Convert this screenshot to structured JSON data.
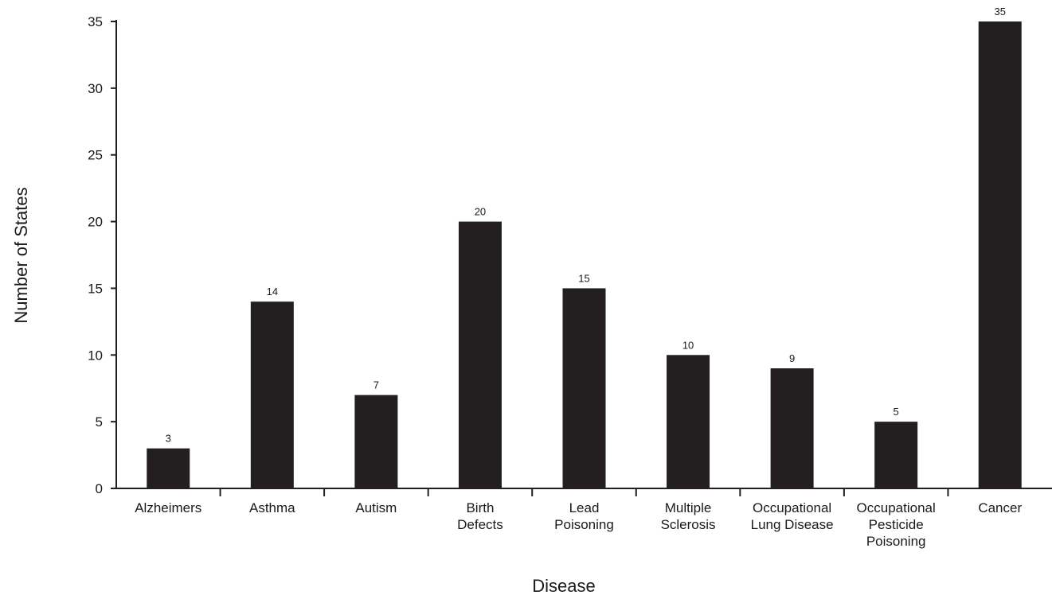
{
  "chart_data": {
    "type": "bar",
    "categories": [
      "Alzheimers",
      "Asthma",
      "Autism",
      "Birth Defects",
      "Lead Poisoning",
      "Multiple Sclerosis",
      "Occupational Lung Disease",
      "Occupational Pesticide Poisoning",
      "Cancer"
    ],
    "category_label_lines": [
      [
        "Alzheimers"
      ],
      [
        "Asthma"
      ],
      [
        "Autism"
      ],
      [
        "Birth",
        "Defects"
      ],
      [
        "Lead",
        "Poisoning"
      ],
      [
        "Multiple",
        "Sclerosis"
      ],
      [
        "Occupational",
        "Lung Disease"
      ],
      [
        "Occupational",
        "Pesticide",
        "Poisoning"
      ],
      [
        "Cancer"
      ]
    ],
    "values": [
      3,
      14,
      7,
      20,
      15,
      10,
      9,
      5,
      35
    ],
    "data_labels": [
      "3",
      "14",
      "7",
      "20",
      "15",
      "10",
      "9",
      "5",
      "35"
    ],
    "title": "",
    "xlabel": "Disease",
    "ylabel": "Number of States",
    "ylim": [
      0,
      35
    ],
    "yticks": [
      0,
      5,
      10,
      15,
      20,
      25,
      30,
      35
    ],
    "ytick_labels": [
      "0",
      "5",
      "10",
      "15",
      "20",
      "25",
      "30",
      "35"
    ],
    "grid": false,
    "legend": "none",
    "colors": {
      "bar": "#231f20",
      "axis": "#231f20",
      "text": "#1a1a1a"
    }
  }
}
